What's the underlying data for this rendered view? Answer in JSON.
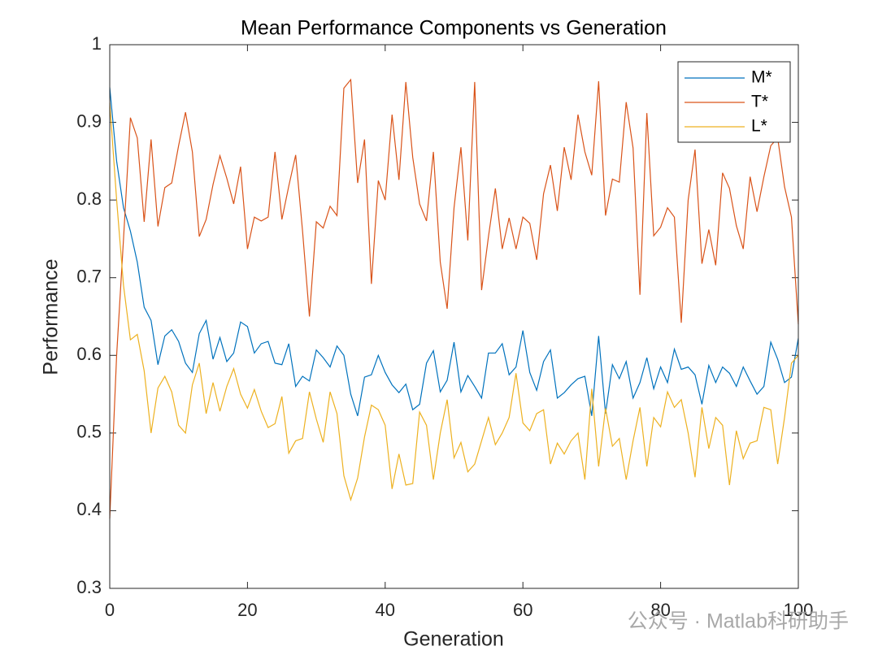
{
  "chart_data": {
    "type": "line",
    "title": "Mean Performance Components vs Generation",
    "xlabel": "Generation",
    "ylabel": "Performance",
    "watermark": "公众号 · Matlab科研助手",
    "x": [
      0,
      1,
      2,
      3,
      4,
      5,
      6,
      7,
      8,
      9,
      10,
      11,
      12,
      13,
      14,
      15,
      16,
      17,
      18,
      19,
      20,
      21,
      22,
      23,
      24,
      25,
      26,
      27,
      28,
      29,
      30,
      31,
      32,
      33,
      34,
      35,
      36,
      37,
      38,
      39,
      40,
      41,
      42,
      43,
      44,
      45,
      46,
      47,
      48,
      49,
      50,
      51,
      52,
      53,
      54,
      55,
      56,
      57,
      58,
      59,
      60,
      61,
      62,
      63,
      64,
      65,
      66,
      67,
      68,
      69,
      70,
      71,
      72,
      73,
      74,
      75,
      76,
      77,
      78,
      79,
      80,
      81,
      82,
      83,
      84,
      85,
      86,
      87,
      88,
      89,
      90,
      91,
      92,
      93,
      94,
      95,
      96,
      97,
      98,
      99,
      100
    ],
    "series": [
      {
        "name": "M*",
        "color": "#0072bd",
        "values": [
          0.945,
          0.85,
          0.79,
          0.76,
          0.72,
          0.662,
          0.645,
          0.588,
          0.625,
          0.633,
          0.618,
          0.59,
          0.578,
          0.628,
          0.645,
          0.595,
          0.623,
          0.592,
          0.603,
          0.643,
          0.637,
          0.603,
          0.615,
          0.618,
          0.59,
          0.588,
          0.615,
          0.56,
          0.573,
          0.567,
          0.607,
          0.597,
          0.585,
          0.612,
          0.6,
          0.55,
          0.522,
          0.572,
          0.575,
          0.6,
          0.578,
          0.562,
          0.552,
          0.563,
          0.53,
          0.537,
          0.59,
          0.606,
          0.553,
          0.568,
          0.617,
          0.553,
          0.574,
          0.56,
          0.545,
          0.603,
          0.603,
          0.615,
          0.575,
          0.585,
          0.632,
          0.578,
          0.555,
          0.592,
          0.607,
          0.545,
          0.552,
          0.562,
          0.57,
          0.573,
          0.522,
          0.625,
          0.525,
          0.588,
          0.57,
          0.592,
          0.545,
          0.565,
          0.597,
          0.557,
          0.585,
          0.565,
          0.608,
          0.582,
          0.585,
          0.575,
          0.537,
          0.587,
          0.565,
          0.585,
          0.577,
          0.56,
          0.585,
          0.567,
          0.55,
          0.56,
          0.617,
          0.595,
          0.565,
          0.572,
          0.622
        ]
      },
      {
        "name": "T*",
        "color": "#d95319",
        "values": [
          0.39,
          0.6,
          0.75,
          0.906,
          0.88,
          0.772,
          0.878,
          0.766,
          0.816,
          0.822,
          0.87,
          0.913,
          0.862,
          0.753,
          0.775,
          0.82,
          0.857,
          0.828,
          0.795,
          0.843,
          0.737,
          0.778,
          0.773,
          0.778,
          0.862,
          0.775,
          0.818,
          0.858,
          0.76,
          0.65,
          0.772,
          0.764,
          0.792,
          0.78,
          0.944,
          0.955,
          0.822,
          0.878,
          0.692,
          0.825,
          0.8,
          0.91,
          0.826,
          0.952,
          0.855,
          0.795,
          0.773,
          0.862,
          0.72,
          0.66,
          0.79,
          0.868,
          0.748,
          0.952,
          0.684,
          0.753,
          0.815,
          0.737,
          0.777,
          0.737,
          0.778,
          0.77,
          0.723,
          0.808,
          0.845,
          0.786,
          0.868,
          0.826,
          0.91,
          0.862,
          0.832,
          0.953,
          0.78,
          0.827,
          0.823,
          0.926,
          0.867,
          0.678,
          0.912,
          0.754,
          0.765,
          0.79,
          0.778,
          0.642,
          0.8,
          0.865,
          0.718,
          0.762,
          0.716,
          0.835,
          0.815,
          0.767,
          0.737,
          0.83,
          0.785,
          0.83,
          0.87,
          0.88,
          0.817,
          0.778,
          0.64
        ]
      },
      {
        "name": "L*",
        "color": "#edb120",
        "values": [
          0.925,
          0.8,
          0.69,
          0.62,
          0.627,
          0.58,
          0.5,
          0.558,
          0.573,
          0.553,
          0.51,
          0.5,
          0.562,
          0.59,
          0.525,
          0.565,
          0.528,
          0.56,
          0.583,
          0.55,
          0.532,
          0.556,
          0.528,
          0.507,
          0.512,
          0.547,
          0.474,
          0.49,
          0.493,
          0.553,
          0.518,
          0.488,
          0.553,
          0.525,
          0.445,
          0.414,
          0.442,
          0.495,
          0.536,
          0.53,
          0.51,
          0.428,
          0.473,
          0.433,
          0.435,
          0.527,
          0.51,
          0.44,
          0.5,
          0.543,
          0.468,
          0.488,
          0.45,
          0.46,
          0.49,
          0.52,
          0.485,
          0.5,
          0.52,
          0.577,
          0.513,
          0.503,
          0.525,
          0.53,
          0.46,
          0.487,
          0.473,
          0.49,
          0.5,
          0.44,
          0.557,
          0.457,
          0.532,
          0.483,
          0.493,
          0.44,
          0.49,
          0.533,
          0.457,
          0.52,
          0.508,
          0.553,
          0.533,
          0.543,
          0.5,
          0.443,
          0.533,
          0.48,
          0.52,
          0.51,
          0.433,
          0.503,
          0.467,
          0.487,
          0.49,
          0.533,
          0.53,
          0.46,
          0.52,
          0.59,
          0.6
        ]
      }
    ],
    "xlim": [
      0,
      100
    ],
    "xticks": [
      0,
      20,
      40,
      60,
      80,
      100
    ],
    "ylim": [
      0.3,
      1
    ],
    "yticks": [
      0.3,
      0.4,
      0.5,
      0.6,
      0.7,
      0.8,
      0.9,
      1
    ],
    "grid": false,
    "legend": "northeast"
  }
}
